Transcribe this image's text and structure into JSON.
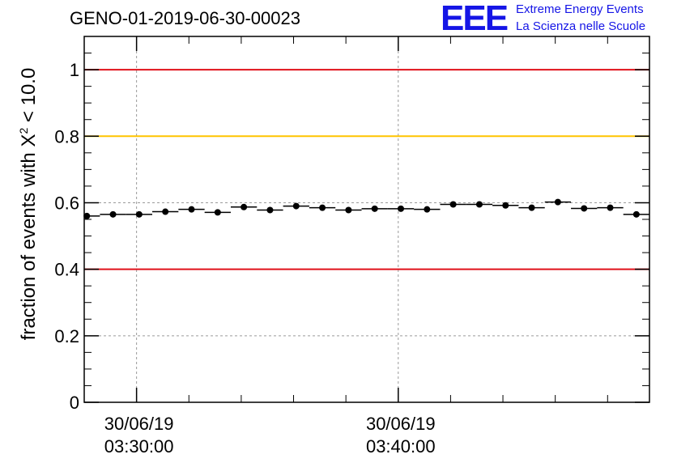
{
  "title": "GENO-01-2019-06-30-00023",
  "logo": {
    "mark": "EEE",
    "line1": "Extreme Energy Events",
    "line2": "La Scienza nelle Scuole"
  },
  "colors": {
    "red_line": "#e0101a",
    "yellow_line": "#ffc400",
    "logo_blue": "#1515e6",
    "grid": "#9a9a9a"
  },
  "chart_data": {
    "type": "scatter",
    "title": "GENO-01-2019-06-30-00023",
    "ylabel": {
      "prefix": "fraction of events with ",
      "symbol": "X",
      "superscript": "2",
      "suffix": " < 10.0"
    },
    "xlabel": "",
    "x_unit": "minutes after 30/06/19 03:30:00",
    "xlim": [
      -2,
      19.6
    ],
    "ylim": [
      0,
      1.1
    ],
    "yticks": [
      0,
      0.2,
      0.4,
      0.6,
      0.8,
      1
    ],
    "ytick_labels": [
      "0",
      "0.2",
      "0.4",
      "0.6",
      "0.8",
      "1"
    ],
    "xticks": [
      {
        "x": 0,
        "line1": "30/06/19",
        "line2": "03:30:00"
      },
      {
        "x": 10,
        "line1": "30/06/19",
        "line2": "03:40:00"
      }
    ],
    "x_minor_ticks": [
      -2,
      2,
      4,
      6,
      8,
      12,
      14,
      16,
      18
    ],
    "grid": true,
    "reference_lines": [
      {
        "y": 1.0,
        "color": "red"
      },
      {
        "y": 0.8,
        "color": "yellow"
      },
      {
        "y": 0.4,
        "color": "red"
      }
    ],
    "bin_width_min": 1,
    "points": [
      {
        "x": -1.9,
        "y": 0.56
      },
      {
        "x": -0.9,
        "y": 0.565
      },
      {
        "x": 0.1,
        "y": 0.565
      },
      {
        "x": 1.1,
        "y": 0.573
      },
      {
        "x": 2.1,
        "y": 0.58
      },
      {
        "x": 3.1,
        "y": 0.571
      },
      {
        "x": 4.1,
        "y": 0.587
      },
      {
        "x": 5.1,
        "y": 0.578
      },
      {
        "x": 6.1,
        "y": 0.59
      },
      {
        "x": 7.1,
        "y": 0.585
      },
      {
        "x": 8.1,
        "y": 0.578
      },
      {
        "x": 9.1,
        "y": 0.582
      },
      {
        "x": 10.1,
        "y": 0.582
      },
      {
        "x": 11.1,
        "y": 0.58
      },
      {
        "x": 12.1,
        "y": 0.595
      },
      {
        "x": 13.1,
        "y": 0.595
      },
      {
        "x": 14.1,
        "y": 0.592
      },
      {
        "x": 15.1,
        "y": 0.585
      },
      {
        "x": 16.1,
        "y": 0.602
      },
      {
        "x": 17.1,
        "y": 0.583
      },
      {
        "x": 18.1,
        "y": 0.585
      },
      {
        "x": 19.1,
        "y": 0.565
      }
    ]
  }
}
